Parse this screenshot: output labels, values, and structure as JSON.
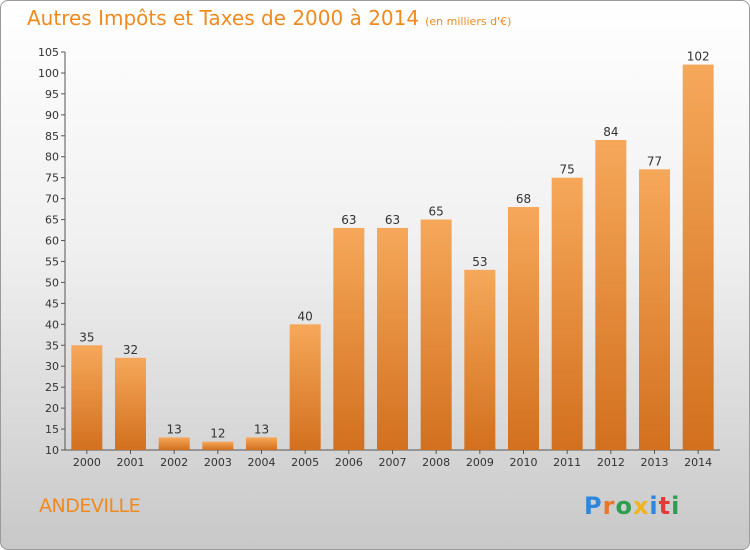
{
  "header": {
    "title": "Autres Impôts et Taxes de 2000 à 2014",
    "unit": "(en milliers d'€)"
  },
  "footer": {
    "place": "ANDEVILLE",
    "logo_letters": [
      "P",
      "r",
      "o",
      "x",
      "i",
      "t",
      "i"
    ],
    "logo_colors": [
      "#2e86de",
      "#e8762d",
      "#2e9e4f",
      "#f0b41c",
      "#2e86de",
      "#e53935",
      "#2e9e4f"
    ]
  },
  "colors": {
    "bar_top": "#f6a85a",
    "bar_bottom": "#d2701e",
    "title": "#f08a1f"
  },
  "chart_data": {
    "type": "bar",
    "categories": [
      "2000",
      "2001",
      "2002",
      "2003",
      "2004",
      "2005",
      "2006",
      "2007",
      "2008",
      "2009",
      "2010",
      "2011",
      "2012",
      "2013",
      "2014"
    ],
    "values": [
      35,
      32,
      13,
      12,
      13,
      40,
      63,
      63,
      65,
      53,
      68,
      75,
      84,
      77,
      102
    ],
    "ylim": [
      10,
      105
    ],
    "yticks": [
      10,
      15,
      20,
      25,
      30,
      35,
      40,
      45,
      50,
      55,
      60,
      65,
      70,
      75,
      80,
      85,
      90,
      95,
      100,
      105
    ],
    "grid": false,
    "data_labels": true
  }
}
